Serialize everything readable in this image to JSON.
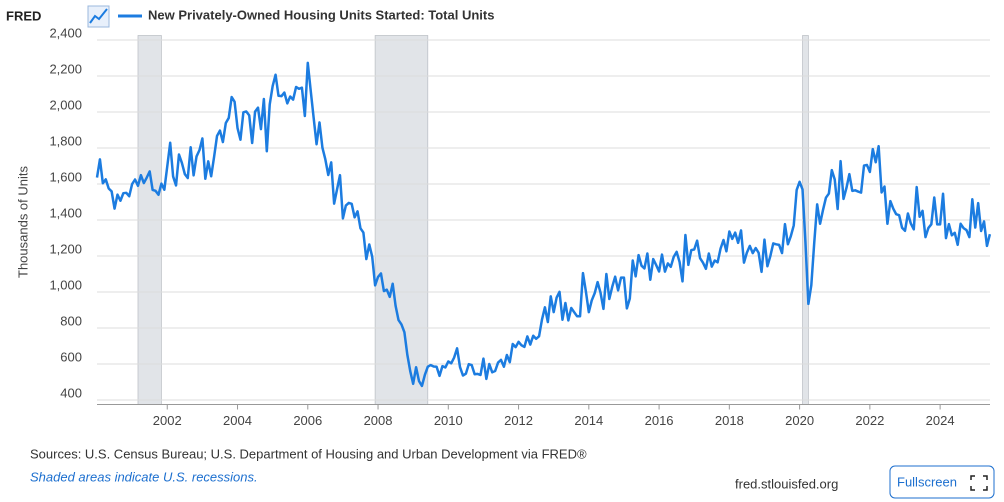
{
  "logo": "FRED",
  "chart_data": {
    "type": "line",
    "y_label": "Thousands of Units",
    "series": [
      {
        "name": "New Privately-Owned Housing Units Started: Total Units",
        "color": "#1c7ce0",
        "values": [
          1636,
          1737,
          1604,
          1626,
          1575,
          1559,
          1463,
          1541,
          1507,
          1549,
          1551,
          1532,
          1600,
          1625,
          1590,
          1649,
          1605,
          1636,
          1670,
          1567,
          1562,
          1540,
          1602,
          1568,
          1698,
          1829,
          1642,
          1592,
          1764,
          1717,
          1655,
          1633,
          1804,
          1648,
          1753,
          1788,
          1853,
          1629,
          1726,
          1643,
          1751,
          1867,
          1897,
          1833,
          1939,
          1967,
          2083,
          2057,
          1911,
          1846,
          1998,
          2003,
          1981,
          1828,
          2002,
          2024,
          1905,
          2072,
          1782,
          2042,
          2144,
          2207,
          2090,
          2088,
          2108,
          2048,
          2086,
          2069,
          2139,
          2129,
          2135,
          1978,
          2273,
          2119,
          1969,
          1821,
          1942,
          1802,
          1737,
          1650,
          1720,
          1491,
          1570,
          1649,
          1409,
          1480,
          1495,
          1490,
          1415,
          1448,
          1354,
          1330,
          1183,
          1264,
          1197,
          1037,
          1084,
          1103,
          1005,
          1013,
          973,
          1046,
          923,
          844,
          820,
          777,
          652,
          560,
          490,
          582,
          505,
          478,
          540,
          585,
          594,
          586,
          585,
          534,
          588,
          581,
          614,
          604,
          636,
          687,
          583,
          536,
          546,
          599,
          594,
          543,
          545,
          539,
          630,
          517,
          600,
          554,
          561,
          608,
          623,
          585,
          650,
          610,
          711,
          694,
          723,
          704,
          695,
          753,
          708,
          757,
          740,
          754,
          847,
          915,
          833,
          976,
          888,
          969,
          1001,
          846,
          939,
          842,
          911,
          888,
          865,
          865,
          1105,
          1003,
          888,
          953,
          993,
          1055,
          996,
          906,
          1100,
          961,
          1029,
          1085,
          1009,
          1080,
          1080,
          909,
          963,
          1175,
          1087,
          1205,
          1146,
          1131,
          1214,
          1068,
          1183,
          1150,
          1114,
          1208,
          1113,
          1159,
          1140,
          1195,
          1223,
          1167,
          1059,
          1317,
          1151,
          1233,
          1236,
          1285,
          1188,
          1163,
          1129,
          1214,
          1141,
          1175,
          1165,
          1241,
          1289,
          1226,
          1336,
          1295,
          1330,
          1273,
          1342,
          1163,
          1219,
          1256,
          1216,
          1244,
          1218,
          1112,
          1291,
          1143,
          1199,
          1270,
          1265,
          1262,
          1216,
          1377,
          1265,
          1310,
          1370,
          1567,
          1612,
          1570,
          1275,
          934,
          1038,
          1273,
          1487,
          1379,
          1456,
          1524,
          1547,
          1677,
          1625,
          1461,
          1727,
          1517,
          1578,
          1655,
          1562,
          1565,
          1558,
          1552,
          1702,
          1706,
          1667,
          1794,
          1721,
          1810,
          1553,
          1586,
          1379,
          1505,
          1463,
          1432,
          1427,
          1357,
          1340,
          1436,
          1380,
          1348,
          1583,
          1418,
          1451,
          1305,
          1356,
          1376,
          1525,
          1376,
          1376,
          1546,
          1299,
          1377,
          1315,
          1329,
          1262,
          1379,
          1355,
          1344,
          1305,
          1515,
          1358,
          1494,
          1339,
          1392,
          1256,
          1321
        ]
      }
    ],
    "x": [
      "2000-01",
      "2000-02",
      "2000-03",
      "2000-04",
      "2000-05",
      "2000-06",
      "2000-07",
      "2000-08",
      "2000-09",
      "2000-10",
      "2000-11",
      "2000-12",
      "2001-01",
      "2001-02",
      "2001-03",
      "2001-04",
      "2001-05",
      "2001-06",
      "2001-07",
      "2001-08",
      "2001-09",
      "2001-10",
      "2001-11",
      "2001-12",
      "2002-01",
      "2002-02",
      "2002-03",
      "2002-04",
      "2002-05",
      "2002-06",
      "2002-07",
      "2002-08",
      "2002-09",
      "2002-10",
      "2002-11",
      "2002-12",
      "2003-01",
      "2003-02",
      "2003-03",
      "2003-04",
      "2003-05",
      "2003-06",
      "2003-07",
      "2003-08",
      "2003-09",
      "2003-10",
      "2003-11",
      "2003-12",
      "2004-01",
      "2004-02",
      "2004-03",
      "2004-04",
      "2004-05",
      "2004-06",
      "2004-07",
      "2004-08",
      "2004-09",
      "2004-10",
      "2004-11",
      "2004-12",
      "2005-01",
      "2005-02",
      "2005-03",
      "2005-04",
      "2005-05",
      "2005-06",
      "2005-07",
      "2005-08",
      "2005-09",
      "2005-10",
      "2005-11",
      "2005-12",
      "2006-01",
      "2006-02",
      "2006-03",
      "2006-04",
      "2006-05",
      "2006-06",
      "2006-07",
      "2006-08",
      "2006-09",
      "2006-10",
      "2006-11",
      "2006-12",
      "2007-01",
      "2007-02",
      "2007-03",
      "2007-04",
      "2007-05",
      "2007-06",
      "2007-07",
      "2007-08",
      "2007-09",
      "2007-10",
      "2007-11",
      "2007-12",
      "2008-01",
      "2008-02",
      "2008-03",
      "2008-04",
      "2008-05",
      "2008-06",
      "2008-07",
      "2008-08",
      "2008-09",
      "2008-10",
      "2008-11",
      "2008-12",
      "2009-01",
      "2009-02",
      "2009-03",
      "2009-04",
      "2009-05",
      "2009-06",
      "2009-07",
      "2009-08",
      "2009-09",
      "2009-10",
      "2009-11",
      "2009-12",
      "2010-01",
      "2010-02",
      "2010-03",
      "2010-04",
      "2010-05",
      "2010-06",
      "2010-07",
      "2010-08",
      "2010-09",
      "2010-10",
      "2010-11",
      "2010-12",
      "2011-01",
      "2011-02",
      "2011-03",
      "2011-04",
      "2011-05",
      "2011-06",
      "2011-07",
      "2011-08",
      "2011-09",
      "2011-10",
      "2011-11",
      "2011-12",
      "2012-01",
      "2012-02",
      "2012-03",
      "2012-04",
      "2012-05",
      "2012-06",
      "2012-07",
      "2012-08",
      "2012-09",
      "2012-10",
      "2012-11",
      "2012-12",
      "2013-01",
      "2013-02",
      "2013-03",
      "2013-04",
      "2013-05",
      "2013-06",
      "2013-07",
      "2013-08",
      "2013-09",
      "2013-10",
      "2013-11",
      "2013-12",
      "2014-01",
      "2014-02",
      "2014-03",
      "2014-04",
      "2014-05",
      "2014-06",
      "2014-07",
      "2014-08",
      "2014-09",
      "2014-10",
      "2014-11",
      "2014-12",
      "2015-01",
      "2015-02",
      "2015-03",
      "2015-04",
      "2015-05",
      "2015-06",
      "2015-07",
      "2015-08",
      "2015-09",
      "2015-10",
      "2015-11",
      "2015-12",
      "2016-01",
      "2016-02",
      "2016-03",
      "2016-04",
      "2016-05",
      "2016-06",
      "2016-07",
      "2016-08",
      "2016-09",
      "2016-10",
      "2016-11",
      "2016-12",
      "2017-01",
      "2017-02",
      "2017-03",
      "2017-04",
      "2017-05",
      "2017-06",
      "2017-07",
      "2017-08",
      "2017-09",
      "2017-10",
      "2017-11",
      "2017-12",
      "2018-01",
      "2018-02",
      "2018-03",
      "2018-04",
      "2018-05",
      "2018-06",
      "2018-07",
      "2018-08",
      "2018-09",
      "2018-10",
      "2018-11",
      "2018-12",
      "2019-01",
      "2019-02",
      "2019-03",
      "2019-04",
      "2019-05",
      "2019-06",
      "2019-07",
      "2019-08",
      "2019-09",
      "2019-10",
      "2019-11",
      "2019-12",
      "2020-01",
      "2020-02",
      "2020-03",
      "2020-04",
      "2020-05",
      "2020-06",
      "2020-07",
      "2020-08",
      "2020-09",
      "2020-10",
      "2020-11",
      "2020-12",
      "2021-01",
      "2021-02",
      "2021-03",
      "2021-04",
      "2021-05",
      "2021-06",
      "2021-07",
      "2021-08",
      "2021-09",
      "2021-10",
      "2021-11",
      "2021-12",
      "2022-01",
      "2022-02",
      "2022-03",
      "2022-04",
      "2022-05",
      "2022-06",
      "2022-07",
      "2022-08",
      "2022-09",
      "2022-10",
      "2022-11",
      "2022-12",
      "2023-01",
      "2023-02",
      "2023-03",
      "2023-04",
      "2023-05",
      "2023-06",
      "2023-07",
      "2023-08",
      "2023-09",
      "2023-10",
      "2023-11",
      "2023-12",
      "2024-01",
      "2024-02",
      "2024-03",
      "2024-04",
      "2024-05",
      "2024-06",
      "2024-07",
      "2024-08",
      "2024-09",
      "2024-10",
      "2024-11",
      "2024-12",
      "2025-01",
      "2025-02",
      "2025-03",
      "2025-04",
      "2025-05",
      "2025-06"
    ],
    "recessions": [
      {
        "start": "2001-03",
        "end": "2001-11"
      },
      {
        "start": "2007-12",
        "end": "2009-06"
      },
      {
        "start": "2020-02",
        "end": "2020-04"
      }
    ],
    "xlim": [
      2000,
      2025.42
    ],
    "xticks": [
      2002,
      2004,
      2006,
      2008,
      2010,
      2012,
      2014,
      2016,
      2018,
      2020,
      2022,
      2024
    ],
    "ylim": [
      375,
      2425
    ],
    "yticks": [
      400,
      600,
      800,
      {
        "value": 1000,
        "label": "1,000"
      },
      {
        "value": 1200,
        "label": "1,200"
      },
      {
        "value": 1400,
        "label": "1,400"
      },
      {
        "value": 1600,
        "label": "1,600"
      },
      {
        "value": 1800,
        "label": "1,800"
      },
      {
        "value": 2000,
        "label": "2,000"
      },
      {
        "value": 2200,
        "label": "2,200"
      },
      {
        "value": 2400,
        "label": "2,400"
      }
    ],
    "grid": true
  },
  "footer": {
    "sources": "Sources: U.S. Census Bureau; U.S. Department of Housing and Urban Development via FRED®",
    "note": "Shaded areas indicate U.S. recessions.",
    "site": "fred.stlouisfed.org",
    "button": "Fullscreen"
  }
}
